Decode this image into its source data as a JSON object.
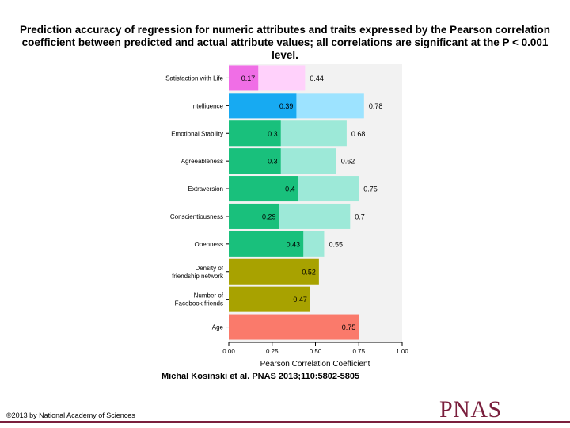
{
  "title": "Prediction accuracy of regression for numeric attributes and traits expressed by the Pearson correlation coefficient between predicted and actual attribute values; all correlations are significant at the P < 0.001 level.",
  "citation": "Michal Kosinski et al. PNAS 2013;110:5802-5805",
  "copyright": "©2013 by National Academy of Sciences",
  "logo_text": "PNAS",
  "colors": {
    "brand": "#7a1f3d"
  },
  "chart_data": {
    "type": "bar",
    "orientation": "horizontal",
    "xlabel": "Pearson Correlation Coefficient",
    "ylabel": "",
    "xlim": [
      0,
      1
    ],
    "xticks": [
      "0.00",
      "0.25",
      "0.50",
      "0.75",
      "1.00"
    ],
    "grid": false,
    "categories": [
      "Satisfaction with Life",
      "Intelligence",
      "Emotional Stability",
      "Agreeableness",
      "Extraversion",
      "Conscientiousness",
      "Openness",
      "Density of friendship network",
      "Number of Facebook friends",
      "Age"
    ],
    "category_lines": [
      [
        "Satisfaction with Life"
      ],
      [
        "Intelligence"
      ],
      [
        "Emotional Stability"
      ],
      [
        "Agreeableness"
      ],
      [
        "Extraversion"
      ],
      [
        "Conscientiousness"
      ],
      [
        "Openness"
      ],
      [
        "Density of",
        "friendship network"
      ],
      [
        "Number of",
        "Facebook friends"
      ],
      [
        "Age"
      ]
    ],
    "series": [
      {
        "values": [
          0.17,
          0.39,
          0.3,
          0.3,
          0.4,
          0.29,
          0.43,
          0.52,
          0.47,
          0.75
        ]
      },
      {
        "values": [
          0.44,
          0.78,
          0.68,
          0.62,
          0.75,
          0.7,
          0.55,
          null,
          null,
          null
        ]
      }
    ],
    "bar_colors": {
      "inner": [
        "#f06ee6",
        "#17aaf2",
        "#19c07c",
        "#19c07c",
        "#19c07c",
        "#19c07c",
        "#19c07c",
        "#a8a200",
        "#a8a200",
        "#fa7a6b"
      ],
      "outer": [
        "#ffd1fb",
        "#9de3ff",
        "#9de9d8",
        "#9de9d8",
        "#9de9d8",
        "#9de9d8",
        "#9de9d8",
        null,
        null,
        null
      ]
    },
    "panel_color": "#f2f2f2"
  }
}
